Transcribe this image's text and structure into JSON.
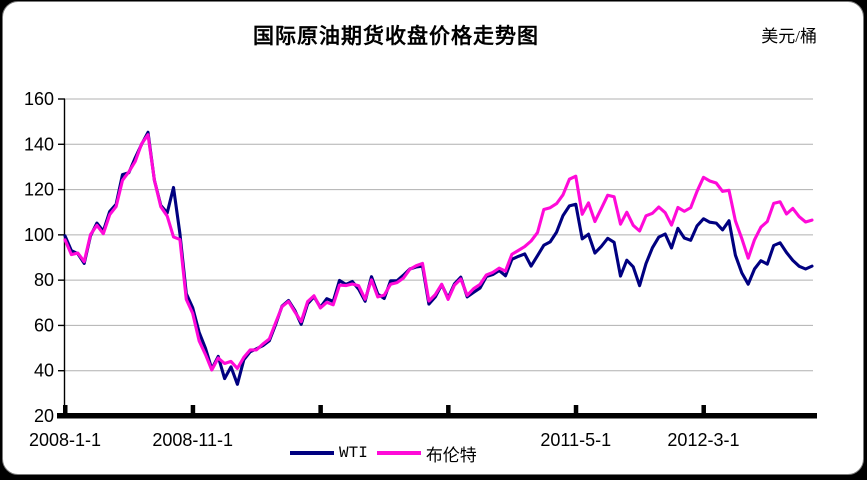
{
  "window": {
    "background_color": "#000000",
    "card_color": "#ffffff"
  },
  "header": {
    "title": "国际原油期货收盘价格走势图",
    "unit_label": "美元/桶"
  },
  "colors": {
    "wti": "#000080",
    "brent": "#ff0ad8",
    "gridline": "#b0b0b0",
    "axis": "#000000"
  },
  "chart_data": {
    "type": "line",
    "title": "国际原油期货收盘价格走势图",
    "ylabel": "美元/桶",
    "xlabel": "",
    "grid": true,
    "legend_position": "bottom",
    "ylim": [
      20,
      160
    ],
    "yticks": [
      20,
      40,
      60,
      80,
      100,
      120,
      140,
      160
    ],
    "x_unit": "months since 2008-01-01",
    "x_step_months": 0.5,
    "x_range_months": [
      0,
      58.5
    ],
    "xticks": [
      {
        "month": 0,
        "label": "2008-1-1"
      },
      {
        "month": 10,
        "label": "2008-11-1"
      },
      {
        "month": 20,
        "label": ""
      },
      {
        "month": 30,
        "label": ""
      },
      {
        "month": 40,
        "label": "2011-5-1"
      },
      {
        "month": 50,
        "label": "2012-3-1"
      }
    ],
    "series": [
      {
        "name": "WTI",
        "color": "#000080",
        "values": [
          99.6,
          93,
          91.7,
          87.4,
          99.6,
          105.2,
          101.6,
          110.3,
          113.5,
          126.6,
          127.4,
          134,
          140,
          145.3,
          124.1,
          113,
          109.7,
          120.9,
          100.6,
          74,
          67.8,
          57,
          49.9,
          40.8,
          46.3,
          36.5,
          41.7,
          34,
          44.8,
          48.4,
          49.7,
          51.1,
          53.2,
          60.5,
          68.6,
          71,
          66.7,
          60.5,
          69.5,
          72.7,
          68,
          71.8,
          70.6,
          79.9,
          78.1,
          79.4,
          76,
          70.7,
          81.5,
          73.9,
          71.9,
          79.7,
          79.7,
          82.2,
          84.9,
          85.8,
          86.2,
          69.4,
          72.6,
          78,
          72.1,
          78.4,
          81.3,
          72.6,
          74.6,
          76.5,
          81.6,
          82.5,
          84.2,
          81.9,
          89.2,
          90.5,
          91.6,
          86.2,
          90.8,
          95.4,
          96.9,
          101.2,
          108.5,
          112.8,
          113.5,
          98.2,
          100.3,
          92,
          94.9,
          98.5,
          96.7,
          81.8,
          88.8,
          85.9,
          77.6,
          87.3,
          94.3,
          99,
          100.4,
          94.2,
          102.9,
          98.6,
          97.6,
          104,
          107.1,
          105.6,
          105.2,
          102.2,
          106.2,
          91,
          83.2,
          78.2,
          84.9,
          88.6,
          87.1,
          95.3,
          96.5,
          92.2,
          88.7,
          86.1,
          84.9,
          86.2
        ]
      },
      {
        "name": "布伦特",
        "color": "#ff0ad8",
        "values": [
          97.8,
          91.3,
          92,
          88.2,
          100.1,
          104.2,
          100.5,
          108.9,
          112.5,
          124.1,
          127.8,
          132.4,
          140.2,
          144.2,
          124.2,
          112.4,
          108.3,
          99.1,
          98,
          71.5,
          65.3,
          53.2,
          47.1,
          40.3,
          45.6,
          43.2,
          44.1,
          41,
          45.9,
          49.2,
          49.2,
          51.8,
          54,
          61.3,
          68.3,
          70.6,
          66,
          61.7,
          70.5,
          73.1,
          67.7,
          70.2,
          69.1,
          77.8,
          77.6,
          78.3,
          77.5,
          71.6,
          80.1,
          72.6,
          73.4,
          78.2,
          78.9,
          80.9,
          84.8,
          86.4,
          87.4,
          70.8,
          73.6,
          78.2,
          71.5,
          77.8,
          80.5,
          73.3,
          76.2,
          78.1,
          82.3,
          83.4,
          85.3,
          84,
          91.4,
          93.1,
          94.8,
          97.3,
          101,
          111.2,
          112,
          113.8,
          117.7,
          124.6,
          125.9,
          109.1,
          114.1,
          105.9,
          111.6,
          117.5,
          116.8,
          104.7,
          110,
          104.2,
          101.7,
          108.4,
          109.5,
          112.3,
          109.8,
          104.3,
          112.1,
          110.4,
          112,
          119.3,
          125.4,
          123.8,
          122.9,
          119.2,
          119.7,
          106.2,
          98.4,
          89.7,
          97.8,
          103.4,
          105.9,
          113.9,
          114.6,
          109.2,
          111.7,
          108,
          105.7,
          106.5
        ]
      }
    ]
  }
}
